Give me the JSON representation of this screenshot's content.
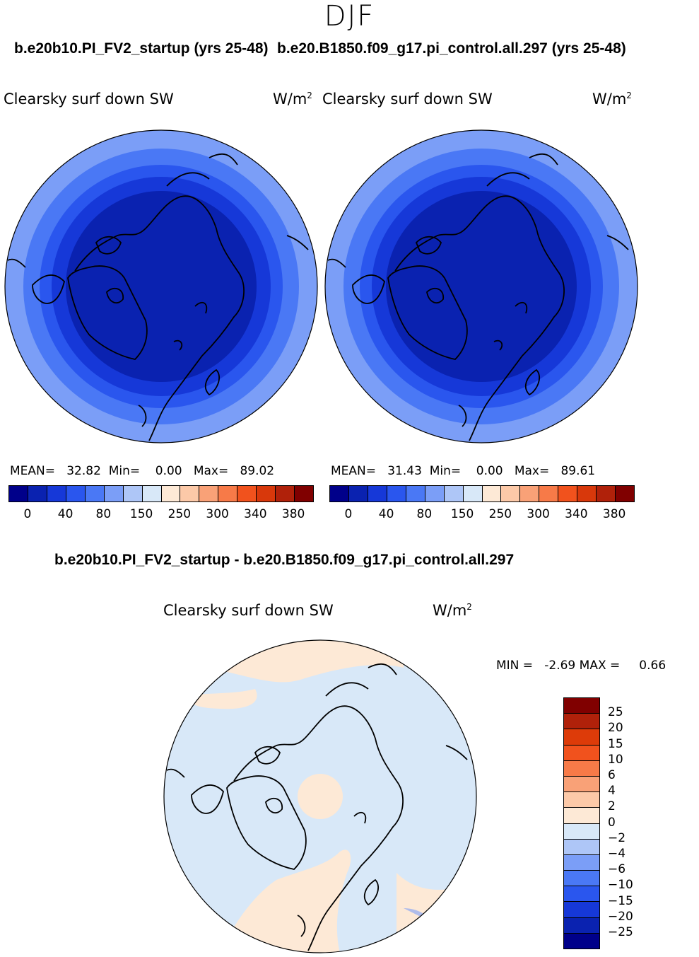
{
  "season": "DJF",
  "case1_title": "b.e20b10.PI_FV2_startup (yrs 25-48)",
  "case2_title": "b.e20.B1850.f09_g17.pi_control.all.297 (yrs 25-48)",
  "diff_title": "b.e20b10.PI_FV2_startup - b.e20.B1850.f09_g17.pi_control.all.297",
  "variable": "Clearsky surf down SW",
  "units": "W/m",
  "units_exp": "2",
  "panel1": {
    "mean_label": "MEAN=",
    "mean": "32.82",
    "min_label": "Min=",
    "min": "0.00",
    "max_label": "Max=",
    "max": "89.02"
  },
  "panel2": {
    "mean_label": "MEAN=",
    "mean": "31.43",
    "min_label": "Min=",
    "min": "0.00",
    "max_label": "Max=",
    "max": "89.61"
  },
  "diff": {
    "min_label": "MIN =",
    "min": "-2.69",
    "max_label": "MAX =",
    "max": "0.66"
  },
  "colorbar_abs": {
    "colors": [
      "#00008a",
      "#0a22b0",
      "#1638d8",
      "#2a56ee",
      "#4a78f5",
      "#7b9ef7",
      "#aec6f7",
      "#d8e8f8",
      "#fde9d6",
      "#fcc9a8",
      "#f9a177",
      "#f77a48",
      "#f1521d",
      "#d8380b",
      "#b0210a",
      "#800000"
    ],
    "ticks": [
      "0",
      "40",
      "80",
      "150",
      "250",
      "300",
      "340",
      "380"
    ]
  },
  "colorbar_diff": {
    "colors": [
      "#800000",
      "#b0210a",
      "#dd3b09",
      "#f1521d",
      "#f77a48",
      "#f9a177",
      "#fcc9a8",
      "#fde9d6",
      "#d8e8f8",
      "#aec6f7",
      "#7b9ef7",
      "#4a78f5",
      "#2a56ee",
      "#1638d8",
      "#0a22b0",
      "#00008a"
    ],
    "ticks": [
      "25",
      "20",
      "15",
      "10",
      "6",
      "4",
      "2",
      "0",
      "−2",
      "−4",
      "−6",
      "−10",
      "−15",
      "−20",
      "−25"
    ]
  },
  "map_colors": {
    "ring_outer": "#7b9ef7",
    "ring2": "#4a78f5",
    "ring3": "#2a56ee",
    "ring4": "#1638d8",
    "core": "#0a22b0",
    "diff_neg": "#d8e8f8",
    "diff_pos": "#fde9d6"
  }
}
